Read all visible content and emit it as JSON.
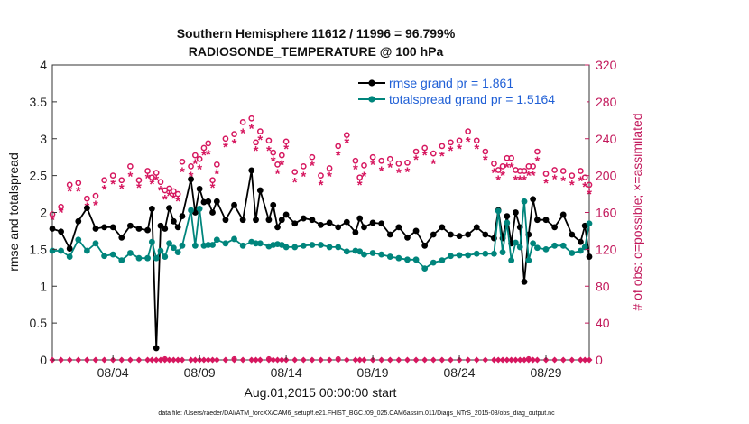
{
  "chart_data": {
    "type": "line",
    "title": "Southern Hemisphere 11612 / 11996 = 96.799%",
    "subtitle": "RADIOSONDE_TEMPERATURE @ 100 hPa",
    "xlabel": "Aug.01,2015 00:00:00 start",
    "ylabel": "rmse and totalspread",
    "y2label": "# of obs: o=possible; ×=assimilated",
    "footnote": "data file: /Users/raeder/DAI/ATM_forcXX/CAM6_setup/f.e21.FHIST_BGC.f09_025.CAM6assim.011/Diags_NTrS_2015-08/obs_diag_output.nc",
    "xlim": [
      0.5,
      31.5
    ],
    "ylim": [
      0,
      4
    ],
    "y2lim": [
      0,
      320
    ],
    "xticks": [
      4,
      9,
      14,
      19,
      24,
      29
    ],
    "xtick_labels": [
      "08/04",
      "08/09",
      "08/14",
      "08/19",
      "08/24",
      "08/29"
    ],
    "yticks": [
      0,
      0.5,
      1,
      1.5,
      2,
      2.5,
      3,
      3.5,
      4
    ],
    "ytick_labels": [
      "0",
      "0.5",
      "1",
      "1.5",
      "2",
      "2.5",
      "3",
      "3.5",
      "4"
    ],
    "y2ticks": [
      0,
      40,
      80,
      120,
      160,
      200,
      240,
      280,
      320
    ],
    "y2tick_labels": [
      "0",
      "40",
      "80",
      "120",
      "160",
      "200",
      "240",
      "280",
      "320"
    ],
    "grid": false,
    "legend_position": "top-right",
    "colors": {
      "rmse": "#000000",
      "spread": "#00857c",
      "obs": "#d6175f"
    },
    "x": [
      0.5,
      1,
      1.5,
      2,
      2.5,
      3,
      3.5,
      4,
      4.5,
      5,
      5.5,
      6,
      6.25,
      6.5,
      6.75,
      7,
      7.25,
      7.5,
      7.75,
      8,
      8.5,
      8.75,
      9,
      9.25,
      9.5,
      9.75,
      10,
      10.5,
      11,
      11.5,
      12,
      12.25,
      12.5,
      13,
      13.25,
      13.5,
      13.75,
      14,
      14.5,
      15,
      15.5,
      16,
      16.5,
      17,
      17.5,
      18,
      18.25,
      18.5,
      19,
      19.5,
      20,
      20.5,
      21,
      21.5,
      22,
      22.5,
      23,
      23.5,
      24,
      24.5,
      25,
      25.5,
      26,
      26.25,
      26.5,
      26.75,
      27,
      27.25,
      27.5,
      27.75,
      28,
      28.25,
      28.5,
      29,
      29.5,
      30,
      30.5,
      31,
      31.25,
      31.5
    ],
    "series": [
      {
        "name": "rmse grand pr = 1.861",
        "axis": "left",
        "values": [
          1.78,
          1.74,
          1.51,
          1.88,
          2.06,
          1.78,
          1.8,
          1.8,
          1.66,
          1.82,
          1.78,
          1.76,
          2.05,
          0.16,
          1.82,
          1.78,
          2.06,
          1.88,
          1.8,
          1.95,
          2.45,
          2.0,
          2.32,
          2.14,
          2.15,
          2.0,
          2.15,
          1.9,
          2.1,
          1.9,
          2.57,
          1.9,
          2.3,
          1.9,
          2.1,
          1.8,
          1.9,
          1.97,
          1.85,
          1.92,
          1.9,
          1.83,
          1.86,
          1.8,
          1.87,
          1.73,
          1.92,
          1.8,
          1.86,
          1.85,
          1.7,
          1.8,
          1.66,
          1.75,
          1.55,
          1.7,
          1.8,
          1.7,
          1.68,
          1.7,
          1.8,
          1.7,
          1.65,
          2.03,
          1.65,
          1.95,
          1.58,
          2.0,
          1.8,
          1.06,
          1.7,
          2.18,
          1.9,
          1.9,
          1.8,
          1.97,
          1.7,
          1.6,
          1.82,
          1.4
        ]
      },
      {
        "name": "totalspread grand pr = 1.5164",
        "axis": "left",
        "values": [
          1.48,
          1.48,
          1.4,
          1.63,
          1.48,
          1.58,
          1.41,
          1.43,
          1.35,
          1.45,
          1.38,
          1.38,
          1.6,
          1.38,
          1.48,
          1.4,
          1.58,
          1.52,
          1.46,
          1.55,
          2.03,
          1.55,
          2.05,
          1.55,
          1.56,
          1.56,
          1.63,
          1.58,
          1.64,
          1.55,
          1.6,
          1.58,
          1.58,
          1.54,
          1.56,
          1.57,
          1.56,
          1.53,
          1.53,
          1.55,
          1.56,
          1.56,
          1.53,
          1.53,
          1.47,
          1.48,
          1.47,
          1.43,
          1.45,
          1.43,
          1.4,
          1.38,
          1.36,
          1.36,
          1.24,
          1.32,
          1.35,
          1.41,
          1.42,
          1.42,
          1.44,
          1.44,
          1.44,
          2.02,
          1.46,
          1.86,
          1.35,
          1.59,
          1.53,
          2.15,
          1.35,
          1.58,
          1.52,
          1.5,
          1.55,
          1.55,
          1.45,
          1.48,
          1.53,
          1.85
        ]
      },
      {
        "name": "# possible obs",
        "axis": "right",
        "marker": "o",
        "values": [
          158,
          166,
          190,
          192,
          175,
          178,
          195,
          200,
          195,
          210,
          195,
          205,
          198,
          203,
          193,
          184,
          186,
          183,
          180,
          215,
          210,
          222,
          218,
          230,
          235,
          195,
          212,
          240,
          245,
          258,
          262,
          236,
          248,
          238,
          225,
          212,
          222,
          237,
          204,
          210,
          220,
          200,
          208,
          232,
          244,
          216,
          198,
          211,
          220,
          216,
          218,
          213,
          214,
          226,
          230,
          224,
          232,
          236,
          238,
          248,
          238,
          226,
          213,
          206,
          210,
          219,
          219,
          206,
          205,
          205,
          210,
          210,
          226,
          202,
          206,
          205,
          200,
          205,
          198,
          190
        ]
      },
      {
        "name": "# assimilated obs",
        "axis": "right",
        "marker": "*",
        "values": [
          153,
          161,
          184,
          184,
          167,
          169,
          186,
          192,
          187,
          200,
          188,
          198,
          192,
          196,
          185,
          175,
          179,
          176,
          173,
          205,
          200,
          214,
          208,
          223,
          224,
          188,
          203,
          232,
          236,
          247,
          252,
          228,
          240,
          228,
          217,
          203,
          213,
          230,
          194,
          200,
          212,
          191,
          200,
          223,
          237,
          208,
          191,
          200,
          213,
          206,
          210,
          204,
          205,
          218,
          223,
          214,
          222,
          228,
          230,
          238,
          230,
          218,
          204,
          196,
          201,
          210,
          210,
          196,
          196,
          196,
          201,
          201,
          217,
          193,
          197,
          195,
          191,
          195,
          189,
          181
        ]
      }
    ],
    "legend": [
      "rmse grand pr = 1.861",
      "totalspread grand pr = 1.5164"
    ]
  }
}
